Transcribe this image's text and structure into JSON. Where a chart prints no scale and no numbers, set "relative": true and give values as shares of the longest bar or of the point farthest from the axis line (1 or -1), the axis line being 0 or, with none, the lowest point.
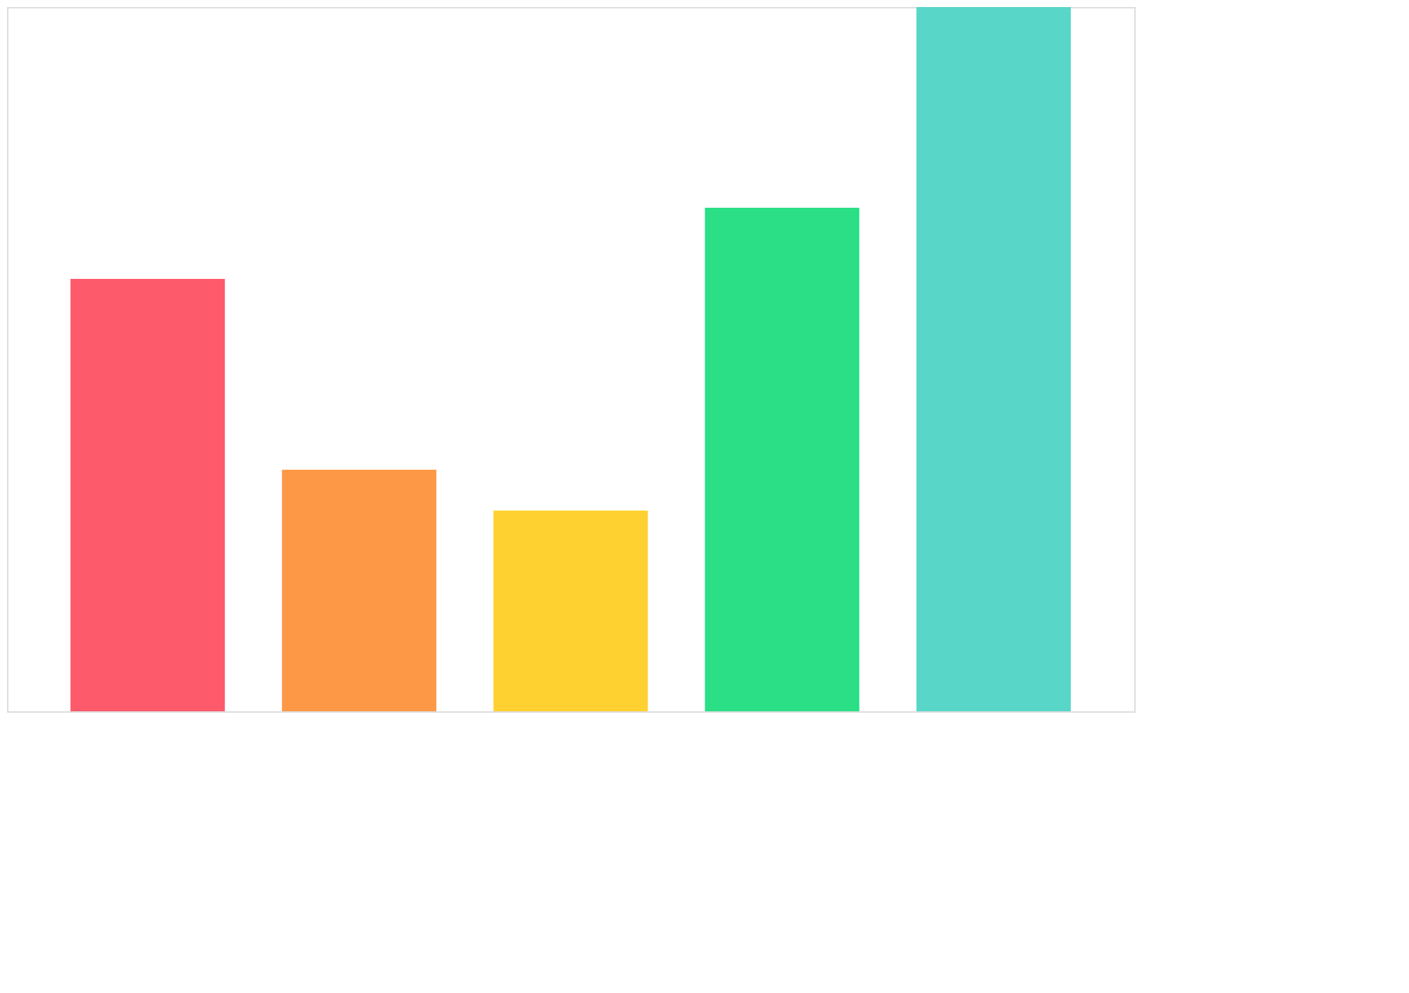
{
  "chart_data": {
    "type": "bar",
    "relative": true,
    "categories": [
      null,
      null,
      null,
      null,
      null
    ],
    "values": [
      0.614,
      0.343,
      0.285,
      0.715,
      1
    ],
    "colors": [
      "#fd5b6b",
      "#fd9846",
      "#fed130",
      "#2adf85",
      "#58d6c8"
    ]
  }
}
